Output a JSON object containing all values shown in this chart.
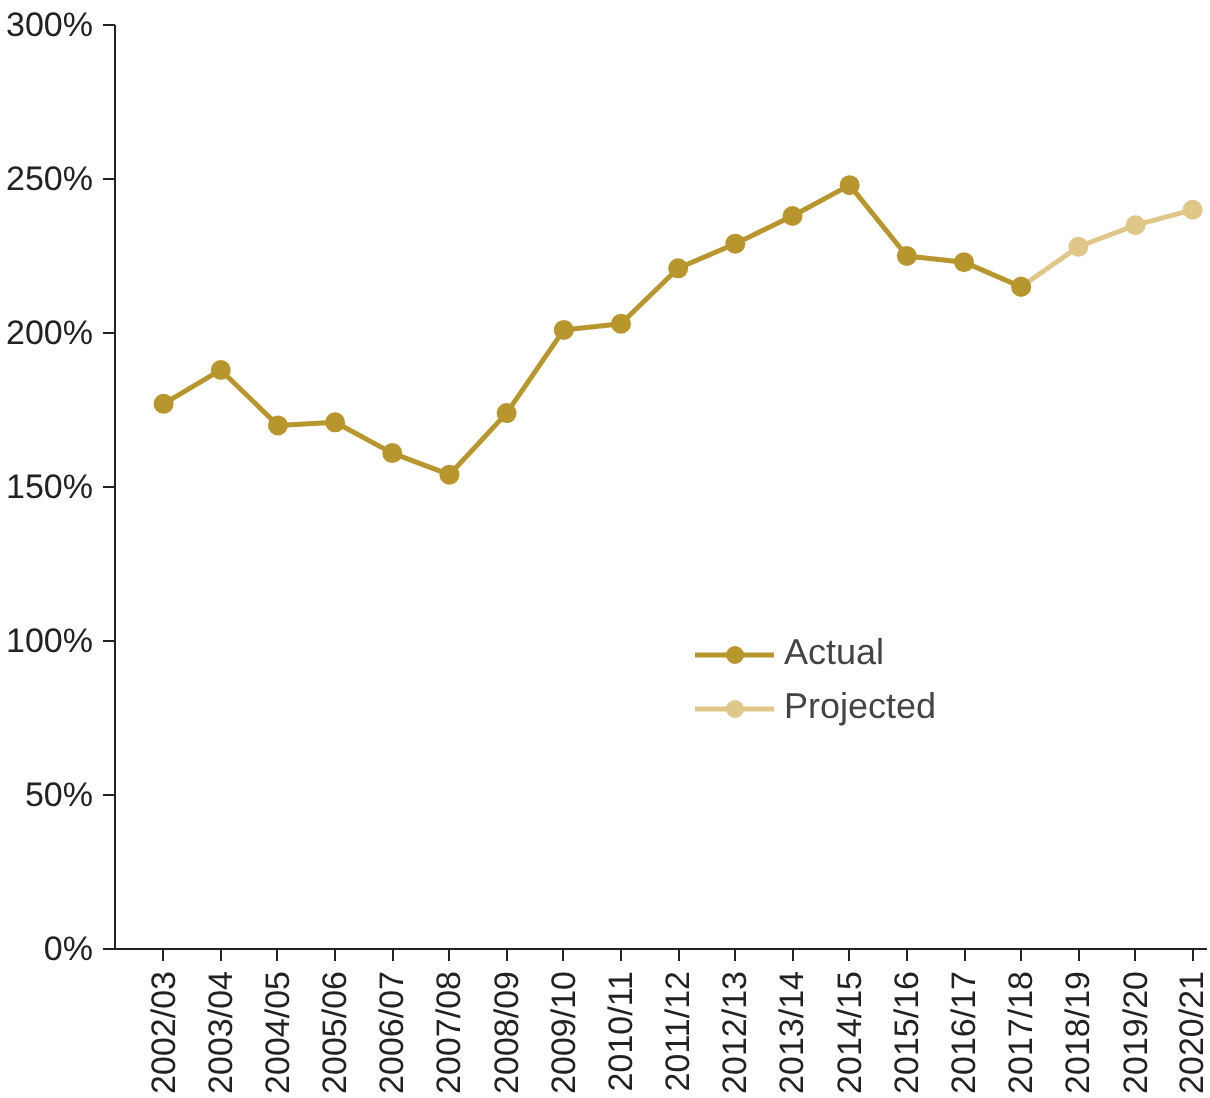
{
  "chart_data": {
    "type": "line",
    "categories": [
      "2002/03",
      "2003/04",
      "2004/05",
      "2005/06",
      "2006/07",
      "2007/08",
      "2008/09",
      "2009/10",
      "2010/11",
      "2011/12",
      "2012/13",
      "2013/14",
      "2014/15",
      "2015/16",
      "2016/17",
      "2017/18",
      "2018/19",
      "2019/20",
      "2020/21"
    ],
    "series": [
      {
        "name": "Actual",
        "color": "#b8962e",
        "values": [
          177,
          188,
          170,
          171,
          161,
          154,
          174,
          201,
          203,
          221,
          229,
          238,
          248,
          225,
          223,
          215,
          null,
          null,
          null
        ]
      },
      {
        "name": "Projected",
        "color": "#dfc78a",
        "values": [
          null,
          null,
          null,
          null,
          null,
          null,
          null,
          null,
          null,
          null,
          null,
          null,
          null,
          null,
          null,
          215,
          228,
          235,
          240
        ]
      }
    ],
    "ylim": [
      0,
      300
    ],
    "yticks": [
      {
        "value": 0,
        "label": "0%"
      },
      {
        "value": 50,
        "label": "50%"
      },
      {
        "value": 100,
        "label": "100%"
      },
      {
        "value": 150,
        "label": "150%"
      },
      {
        "value": 200,
        "label": "200%"
      },
      {
        "value": 250,
        "label": "250%"
      },
      {
        "value": 300,
        "label": "300%"
      }
    ],
    "grid": false,
    "legend": "right",
    "marker": "circle",
    "line_style": "solid"
  }
}
